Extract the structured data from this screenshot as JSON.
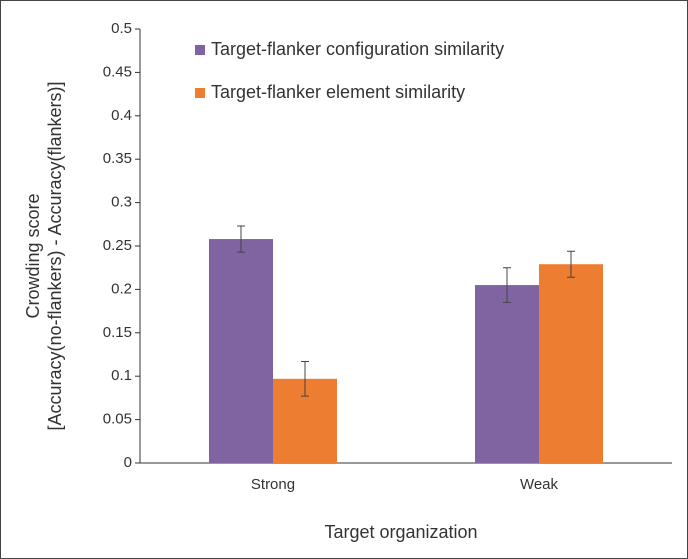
{
  "chart_data": {
    "type": "bar",
    "categories": [
      "Strong",
      "Weak"
    ],
    "series": [
      {
        "name": "Target-flanker configuration similarity",
        "color": "#8064a2",
        "values": [
          0.258,
          0.205
        ],
        "errors": [
          0.015,
          0.02
        ]
      },
      {
        "name": "Target-flanker element similarity",
        "color": "#ed7d31",
        "values": [
          0.097,
          0.229
        ],
        "errors": [
          0.02,
          0.015
        ]
      }
    ],
    "xlabel": "Target organization",
    "ylabel": [
      "Crowding score",
      "[Accuracy(no-flankers) - Accuracy(flankers)]"
    ],
    "ylim": [
      0,
      0.5
    ],
    "yticks": [
      0,
      0.05,
      0.1,
      0.15,
      0.2,
      0.25,
      0.3,
      0.35,
      0.4,
      0.45,
      0.5
    ],
    "grid": false
  }
}
